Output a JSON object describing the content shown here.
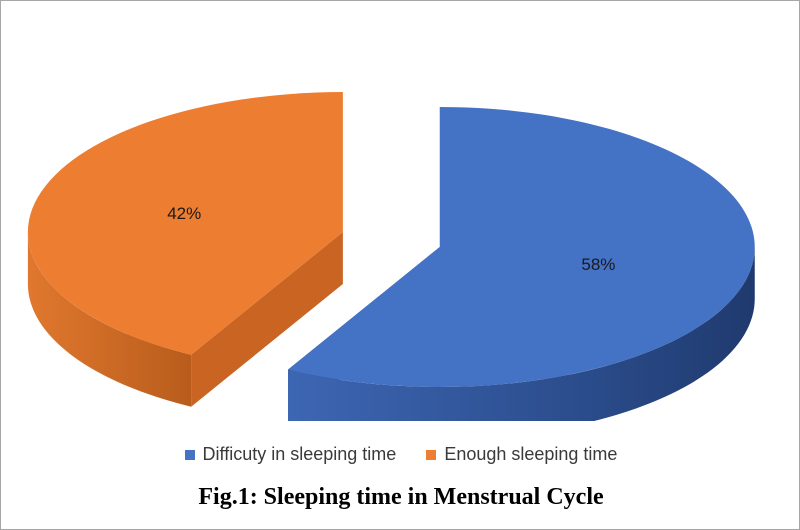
{
  "chart_data": {
    "type": "pie",
    "style": "3d-exploded",
    "categories": [
      "Difficuty in sleeping time",
      "Enough sleeping time"
    ],
    "values": [
      58,
      42
    ],
    "data_labels": [
      "58%",
      "42%"
    ],
    "colors": [
      "#4472c4",
      "#ed7d31"
    ],
    "legend_position": "bottom"
  },
  "caption": "Fig.1: Sleeping time in Menstrual Cycle"
}
